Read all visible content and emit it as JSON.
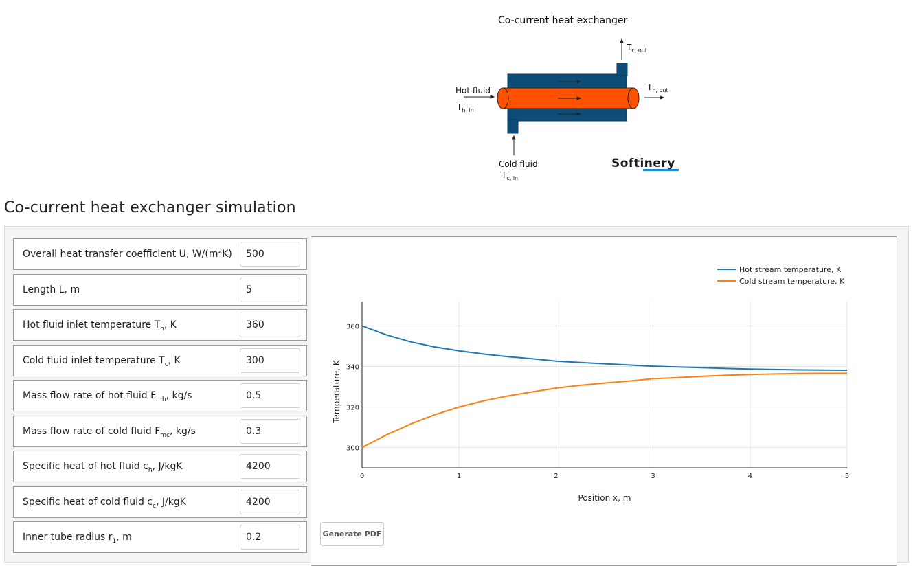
{
  "diagram": {
    "title": "Co-current heat exchanger",
    "hot_fluid_label": "Hot fluid",
    "th_in": {
      "main": "T",
      "sub": "h, in"
    },
    "th_out": {
      "main": "T",
      "sub": "h, out"
    },
    "tc_out": {
      "main": "T",
      "sub": "c, out"
    },
    "cold_fluid_label": "Cold fluid",
    "tc_in": {
      "main": "T",
      "sub": "c, in"
    },
    "logo": "Softinery",
    "colors": {
      "shell": "#0e4d78",
      "tube": "#ff5100"
    }
  },
  "page_title": "Co-current heat exchanger simulation",
  "parameters": [
    {
      "label": "Overall heat transfer coefficient U, W/(m",
      "sup": "2",
      "tail": "K)",
      "value": "500"
    },
    {
      "label": "Length L, m",
      "value": "5"
    },
    {
      "label": "Hot fluid inlet temperature T",
      "sub": "h",
      "tail": ", K",
      "value": "360"
    },
    {
      "label": "Cold fluid inlet temperature T",
      "sub": "c",
      "tail": ", K",
      "value": "300"
    },
    {
      "label": "Mass flow rate of hot fluid F",
      "sub": "mh",
      "tail": ", kg/s",
      "value": "0.5"
    },
    {
      "label": "Mass flow rate of cold fluid F",
      "sub": "mc",
      "tail": ", kg/s",
      "value": "0.3"
    },
    {
      "label": "Specific heat of hot fluid c",
      "sub": "h",
      "tail": ", J/kgK",
      "value": "4200"
    },
    {
      "label": "Specific heat of cold fluid c",
      "sub": "c",
      "tail": ", J/kgK",
      "value": "4200"
    },
    {
      "label": "Inner tube radius r",
      "sub": "1",
      "tail": ", m",
      "value": "0.2"
    }
  ],
  "generate_pdf_label": "Generate PDF",
  "chart_data": {
    "type": "line",
    "xlabel": "Position x, m",
    "ylabel": "Temperature, K",
    "xlim": [
      0,
      5
    ],
    "ylim": [
      290,
      372
    ],
    "x_ticks": [
      0,
      1,
      2,
      3,
      4,
      5
    ],
    "y_ticks": [
      300,
      320,
      340,
      360
    ],
    "grid": true,
    "legend_position": "top-right",
    "x": [
      0,
      0.25,
      0.5,
      0.75,
      1.0,
      1.25,
      1.5,
      1.75,
      2.0,
      2.25,
      2.5,
      2.75,
      3.0,
      3.25,
      3.5,
      3.75,
      4.0,
      4.25,
      4.5,
      4.75,
      5.0
    ],
    "series": [
      {
        "name": "Hot stream temperature, K",
        "color": "#1f77b4",
        "values": [
          360.0,
          355.6,
          352.1,
          349.6,
          347.7,
          346.1,
          344.8,
          343.8,
          342.6,
          341.9,
          341.3,
          340.7,
          340.1,
          339.7,
          339.4,
          339.0,
          338.7,
          338.5,
          338.3,
          338.2,
          338.1
        ]
      },
      {
        "name": "Cold stream temperature, K",
        "color": "#ff7f0e",
        "values": [
          300.0,
          306.2,
          311.6,
          316.2,
          320.0,
          323.0,
          325.4,
          327.4,
          329.3,
          330.7,
          331.8,
          332.8,
          333.9,
          334.5,
          335.1,
          335.6,
          336.0,
          336.3,
          336.5,
          336.6,
          336.6
        ]
      }
    ]
  }
}
